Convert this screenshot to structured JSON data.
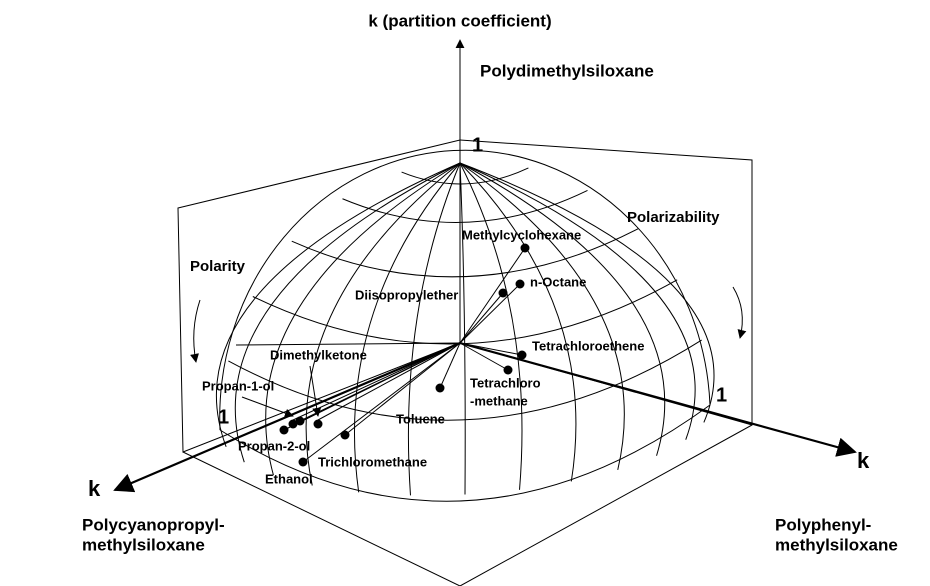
{
  "axes": {
    "vertical": "k (partition coefficient)",
    "left": "k",
    "right": "k"
  },
  "phases": {
    "top": "Polydimethylsiloxane",
    "left": [
      "Polycyanopropyl-",
      "methylsiloxane"
    ],
    "right": [
      "Polyphenyl-",
      "methylsiloxane"
    ]
  },
  "properties": {
    "left": "Polarity",
    "right": "Polarizability"
  },
  "scale": {
    "top": "1",
    "left": "1",
    "right": "1"
  },
  "compounds": [
    {
      "label": [
        "Methylcyclohexane"
      ]
    },
    {
      "label": [
        "n-Octane"
      ]
    },
    {
      "label": [
        "Diisopropylether"
      ]
    },
    {
      "label": [
        "Tetrachloroethene"
      ]
    },
    {
      "label": [
        "Tetrachloro",
        "-methane"
      ]
    },
    {
      "label": [
        "Toluene"
      ]
    },
    {
      "label": [
        "Dimethylketone"
      ]
    },
    {
      "label": [
        "Propan-1-ol"
      ]
    },
    {
      "label": [
        "Propan-2-ol"
      ]
    },
    {
      "label": [
        "Ethanol"
      ]
    },
    {
      "label": [
        "Trichloromethane"
      ]
    }
  ]
}
